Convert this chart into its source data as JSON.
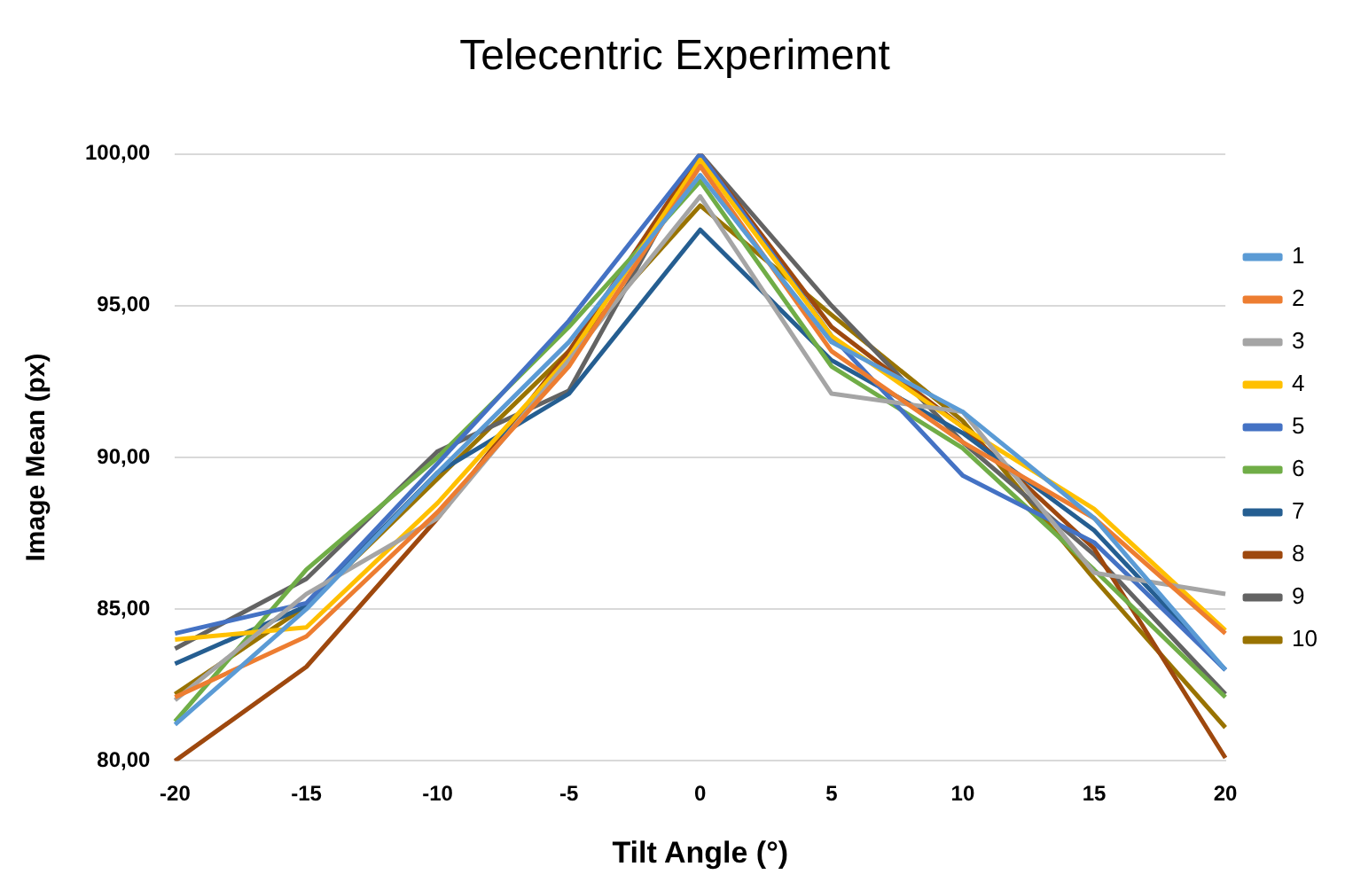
{
  "chart_data": {
    "type": "line",
    "title": "Telecentric Experiment",
    "xlabel": "Tilt Angle (°)",
    "ylabel": "Image Mean (px)",
    "categories": [
      "-20",
      "-15",
      "-10",
      "-5",
      "0",
      "5",
      "10",
      "15",
      "20"
    ],
    "ylim": [
      80,
      100
    ],
    "yticks": [
      {
        "value": 80,
        "label": "80,00"
      },
      {
        "value": 85,
        "label": "85,00"
      },
      {
        "value": 90,
        "label": "90,00"
      },
      {
        "value": 95,
        "label": "95,00"
      },
      {
        "value": 100,
        "label": "100,00"
      }
    ],
    "grid": "y",
    "legend": "right",
    "marker": "none",
    "line_style": "solid",
    "series": [
      {
        "name": "1",
        "color": "#5b9bd5",
        "values": [
          81.2,
          85.0,
          89.5,
          93.8,
          99.3,
          93.8,
          91.5,
          88.0,
          83.0
        ]
      },
      {
        "name": "2",
        "color": "#ed7d31",
        "values": [
          82.1,
          84.1,
          88.2,
          93.0,
          99.6,
          93.5,
          90.5,
          88.0,
          84.2
        ]
      },
      {
        "name": "3",
        "color": "#a5a5a5",
        "values": [
          82.0,
          85.5,
          88.0,
          93.2,
          98.6,
          92.1,
          91.5,
          86.2,
          85.5
        ]
      },
      {
        "name": "4",
        "color": "#ffc000",
        "values": [
          84.0,
          84.4,
          88.5,
          93.3,
          99.8,
          94.0,
          91.0,
          88.3,
          84.3
        ]
      },
      {
        "name": "5",
        "color": "#4472c4",
        "values": [
          84.2,
          85.2,
          89.8,
          94.5,
          100.0,
          94.0,
          89.4,
          87.2,
          83.0
        ]
      },
      {
        "name": "6",
        "color": "#70ad47",
        "values": [
          81.3,
          86.3,
          90.0,
          94.3,
          99.1,
          93.0,
          90.3,
          86.3,
          82.1
        ]
      },
      {
        "name": "7",
        "color": "#255e91",
        "values": [
          83.2,
          85.1,
          89.5,
          92.1,
          97.5,
          93.2,
          90.8,
          87.6,
          83.0
        ]
      },
      {
        "name": "8",
        "color": "#9e480e",
        "values": [
          80.0,
          83.1,
          88.0,
          93.5,
          100.0,
          94.3,
          91.0,
          87.0,
          80.1
        ]
      },
      {
        "name": "9",
        "color": "#636363",
        "values": [
          83.7,
          86.0,
          90.2,
          92.2,
          100.0,
          95.0,
          90.5,
          86.8,
          82.2
        ]
      },
      {
        "name": "10",
        "color": "#997300",
        "values": [
          82.2,
          85.1,
          89.3,
          93.5,
          98.3,
          94.7,
          91.2,
          86.0,
          81.1
        ]
      }
    ]
  }
}
